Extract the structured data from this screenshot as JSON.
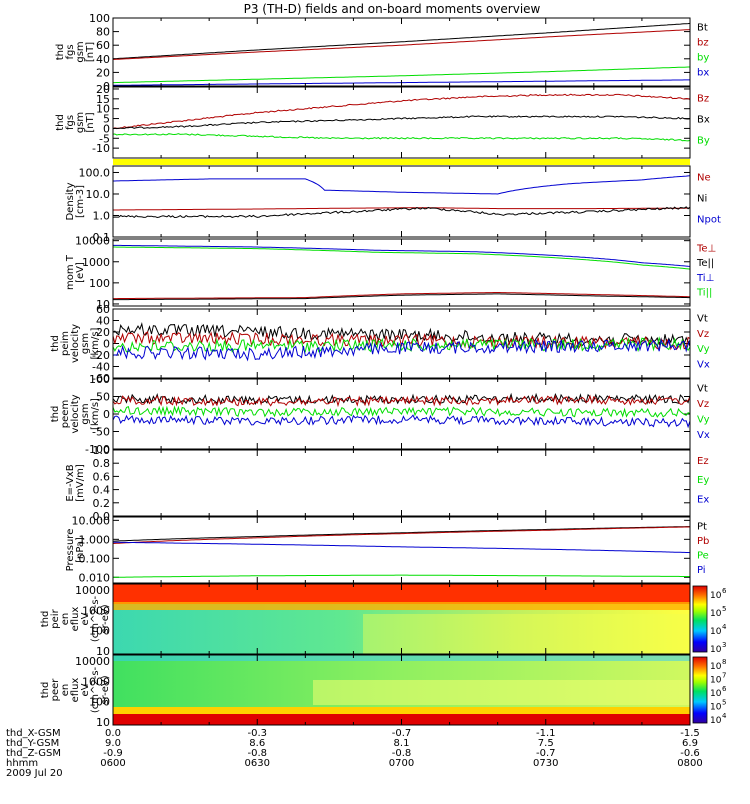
{
  "title": "P3 (TH-D) fields and on-board moments overview",
  "date_label": "2009 Jul 20",
  "colors": {
    "black": "#000000",
    "red": "#b00000",
    "green": "#00dd00",
    "blue": "#0000d0",
    "yellow": "#ffff00"
  },
  "xaxis": {
    "rows": [
      {
        "label": "thd_X-GSM",
        "values": [
          "0.0",
          "-0.3",
          "-0.7",
          "-1.1",
          "-1.5"
        ]
      },
      {
        "label": "thd_Y-GSM",
        "values": [
          "9.0",
          "8.6",
          "8.1",
          "7.5",
          "6.9"
        ]
      },
      {
        "label": "thd_Z-GSM",
        "values": [
          "-0.9",
          "-0.8",
          "-0.8",
          "-0.7",
          "-0.6"
        ]
      },
      {
        "label": "hhmm",
        "values": [
          "0600",
          "0630",
          "0700",
          "0730",
          "0800"
        ]
      }
    ]
  },
  "colorbar_ticks": {
    "ion": [
      "10",
      "10",
      "10",
      "10"
    ],
    "ion_exp": [
      "6",
      "5",
      "4",
      "3"
    ],
    "electron": [
      "10",
      "10",
      "10",
      "10",
      "10"
    ],
    "electron_exp": [
      "8",
      "7",
      "6",
      "5",
      "4"
    ]
  },
  "chart_data": [
    {
      "type": "line",
      "panel": "fgs_mag",
      "ylabel": [
        "thd",
        "fgs",
        "gsm",
        "[nT]"
      ],
      "ylim": [
        0,
        100
      ],
      "ticks": [
        "100",
        "80",
        "60",
        "40",
        "20",
        "0"
      ],
      "series": [
        {
          "name": "Bt",
          "color": "black",
          "x": [
            0,
            30,
            60,
            90,
            120
          ],
          "y": [
            40,
            53,
            65,
            78,
            92
          ]
        },
        {
          "name": "bz",
          "color": "red",
          "x": [
            0,
            30,
            60,
            90,
            120
          ],
          "y": [
            39,
            50,
            60,
            72,
            83
          ]
        },
        {
          "name": "by",
          "color": "green",
          "x": [
            0,
            30,
            60,
            90,
            120
          ],
          "y": [
            5,
            10,
            15,
            21,
            28
          ]
        },
        {
          "name": "bx",
          "color": "blue",
          "x": [
            0,
            30,
            60,
            90,
            120
          ],
          "y": [
            1,
            3,
            5,
            7,
            9
          ]
        }
      ]
    },
    {
      "type": "line",
      "panel": "fgs_comp",
      "ylabel": [
        "thd",
        "fgs",
        "gsm",
        "[nT]"
      ],
      "ylim": [
        -15,
        21
      ],
      "ticks": [
        "20",
        "15",
        "10",
        "5",
        "0",
        "-5",
        "-10"
      ],
      "series": [
        {
          "name": "Bz",
          "color": "red",
          "x": [
            0,
            15,
            30,
            45,
            60,
            75,
            90,
            105,
            120
          ],
          "y": [
            0,
            4,
            8,
            11,
            14,
            16,
            17,
            17,
            15
          ]
        },
        {
          "name": "Bx",
          "color": "black",
          "x": [
            0,
            15,
            30,
            45,
            60,
            75,
            90,
            105,
            120
          ],
          "y": [
            0,
            1,
            3,
            4,
            5,
            6,
            6,
            6,
            5
          ]
        },
        {
          "name": "By",
          "color": "green",
          "x": [
            0,
            15,
            30,
            45,
            60,
            75,
            90,
            105,
            120
          ],
          "y": [
            -3,
            -3,
            -4,
            -5,
            -5,
            -5,
            -5,
            -5,
            -6
          ]
        }
      ]
    },
    {
      "type": "line",
      "panel": "density",
      "ylabel": [
        "Density",
        "[cm-3]"
      ],
      "log": true,
      "ylim": [
        0.1,
        200
      ],
      "ticks": [
        "100.0",
        "10.0",
        "1.0",
        "0.1"
      ],
      "series": [
        {
          "name": "Ne",
          "color": "red",
          "x": [
            0,
            30,
            50,
            65,
            80,
            100,
            120
          ],
          "y": [
            1.8,
            2.0,
            2.2,
            2.3,
            2.1,
            2.1,
            2.2
          ]
        },
        {
          "name": "Ni",
          "color": "black",
          "x": [
            0,
            30,
            50,
            65,
            80,
            100,
            120
          ],
          "y": [
            0.9,
            0.9,
            1.5,
            2.2,
            1.1,
            1.5,
            2.3
          ]
        },
        {
          "name": "Npot",
          "color": "blue",
          "x": [
            0,
            20,
            40,
            44,
            60,
            80,
            95,
            110,
            120
          ],
          "y": [
            40,
            50,
            50,
            15,
            12,
            10,
            30,
            45,
            70
          ]
        }
      ]
    },
    {
      "type": "line",
      "panel": "temperature",
      "ylabel": [
        "mom T",
        "[eV]"
      ],
      "log": true,
      "ylim": [
        8,
        12000
      ],
      "ticks": [
        "10000",
        "1000",
        "100",
        "10"
      ],
      "series": [
        {
          "name": "Te⊥",
          "color": "red",
          "x": [
            0,
            40,
            60,
            80,
            100,
            120
          ],
          "y": [
            18,
            20,
            30,
            35,
            28,
            22
          ]
        },
        {
          "name": "Te||",
          "color": "black",
          "x": [
            0,
            40,
            60,
            80,
            100,
            120
          ],
          "y": [
            16,
            18,
            26,
            30,
            24,
            20
          ]
        },
        {
          "name": "Ti⊥",
          "color": "blue",
          "x": [
            0,
            30,
            55,
            75,
            95,
            110,
            120
          ],
          "y": [
            6000,
            5000,
            3500,
            3000,
            1800,
            900,
            600
          ]
        },
        {
          "name": "Ti||",
          "color": "green",
          "x": [
            0,
            30,
            55,
            75,
            95,
            110,
            120
          ],
          "y": [
            5000,
            4200,
            2800,
            2400,
            1400,
            700,
            450
          ]
        }
      ]
    },
    {
      "type": "line",
      "panel": "peim_velocity",
      "ylabel": [
        "thd",
        "peim",
        "velocity",
        "gsm",
        "[km/s]"
      ],
      "ylim": [
        -60,
        60
      ],
      "ticks": [
        "60",
        "40",
        "20",
        "0",
        "-20",
        "-40",
        "-60"
      ],
      "series": [
        {
          "name": "Vt",
          "color": "black",
          "x": [
            0,
            30,
            60,
            90,
            120
          ],
          "y": [
            25,
            20,
            15,
            8,
            5
          ]
        },
        {
          "name": "Vz",
          "color": "red",
          "x": [
            0,
            30,
            60,
            90,
            120
          ],
          "y": [
            10,
            8,
            5,
            2,
            0
          ]
        },
        {
          "name": "Vy",
          "color": "green",
          "x": [
            0,
            30,
            60,
            90,
            120
          ],
          "y": [
            -5,
            -4,
            -3,
            -2,
            -1
          ]
        },
        {
          "name": "Vx",
          "color": "blue",
          "x": [
            0,
            30,
            60,
            90,
            120
          ],
          "y": [
            -15,
            -18,
            -8,
            -5,
            -2
          ]
        }
      ]
    },
    {
      "type": "line",
      "panel": "peem_velocity",
      "ylabel": [
        "thd",
        "peem",
        "velocity",
        "gsm",
        "[km/s]"
      ],
      "ylim": [
        -100,
        100
      ],
      "ticks": [
        "100",
        "50",
        "0",
        "-50",
        "-100"
      ],
      "series": [
        {
          "name": "Vt",
          "color": "black",
          "x": [
            0,
            30,
            60,
            90,
            120
          ],
          "y": [
            45,
            40,
            42,
            45,
            42
          ]
        },
        {
          "name": "Vz",
          "color": "red",
          "x": [
            0,
            30,
            60,
            90,
            120
          ],
          "y": [
            40,
            35,
            37,
            40,
            38
          ]
        },
        {
          "name": "Vy",
          "color": "green",
          "x": [
            0,
            30,
            60,
            90,
            120
          ],
          "y": [
            10,
            5,
            8,
            5,
            3
          ]
        },
        {
          "name": "Vx",
          "color": "blue",
          "x": [
            0,
            30,
            60,
            90,
            120
          ],
          "y": [
            -15,
            -20,
            -15,
            -20,
            -25
          ]
        }
      ]
    },
    {
      "type": "line",
      "panel": "efield",
      "ylabel": [
        "E=-VxB",
        "[mV/m]"
      ],
      "ylim": [
        0,
        1
      ],
      "ticks": [
        "1.0",
        "0.8",
        "0.6",
        "0.4",
        "0.2",
        "0.0"
      ],
      "series": [
        {
          "name": "Ez",
          "color": "red",
          "x": [],
          "y": []
        },
        {
          "name": "Ey",
          "color": "green",
          "x": [],
          "y": []
        },
        {
          "name": "Ex",
          "color": "blue",
          "x": [],
          "y": []
        }
      ]
    },
    {
      "type": "line",
      "panel": "pressure",
      "ylabel": [
        "Pressure",
        "[nPa]"
      ],
      "log": true,
      "ylim": [
        0.005,
        15
      ],
      "ticks": [
        "10.000",
        "1.000",
        "0.100",
        "0.010"
      ],
      "series": [
        {
          "name": "Pt",
          "color": "black",
          "x": [
            0,
            30,
            60,
            90,
            120
          ],
          "y": [
            0.8,
            1.4,
            2.2,
            3.3,
            4.7
          ]
        },
        {
          "name": "Pb",
          "color": "red",
          "x": [
            0,
            30,
            60,
            90,
            120
          ],
          "y": [
            0.6,
            1.2,
            2.0,
            3.0,
            4.5
          ]
        },
        {
          "name": "Pe",
          "color": "green",
          "x": [
            0,
            30,
            60,
            90,
            120
          ],
          "y": [
            0.01,
            0.012,
            0.013,
            0.012,
            0.011
          ]
        },
        {
          "name": "Pi",
          "color": "blue",
          "x": [
            0,
            30,
            60,
            90,
            120
          ],
          "y": [
            0.7,
            0.55,
            0.4,
            0.3,
            0.2
          ]
        }
      ]
    },
    {
      "type": "heatmap",
      "panel": "peir",
      "ylabel": [
        "thd",
        "peir",
        "en",
        "eflux",
        "eV",
        "(cm^2-s-",
        "sr-eV)"
      ],
      "log": true,
      "ylim": [
        7,
        20000
      ],
      "ticks": [
        "10000",
        "1000",
        "100",
        "10"
      ]
    },
    {
      "type": "heatmap",
      "panel": "peer",
      "ylabel": [
        "thd",
        "peer",
        "en",
        "eflux",
        "eV",
        "(cm^2-s-",
        "sr-eV)"
      ],
      "log": true,
      "ylim": [
        7,
        20000
      ],
      "ticks": [
        "10000",
        "1000",
        "100",
        "10"
      ]
    }
  ]
}
